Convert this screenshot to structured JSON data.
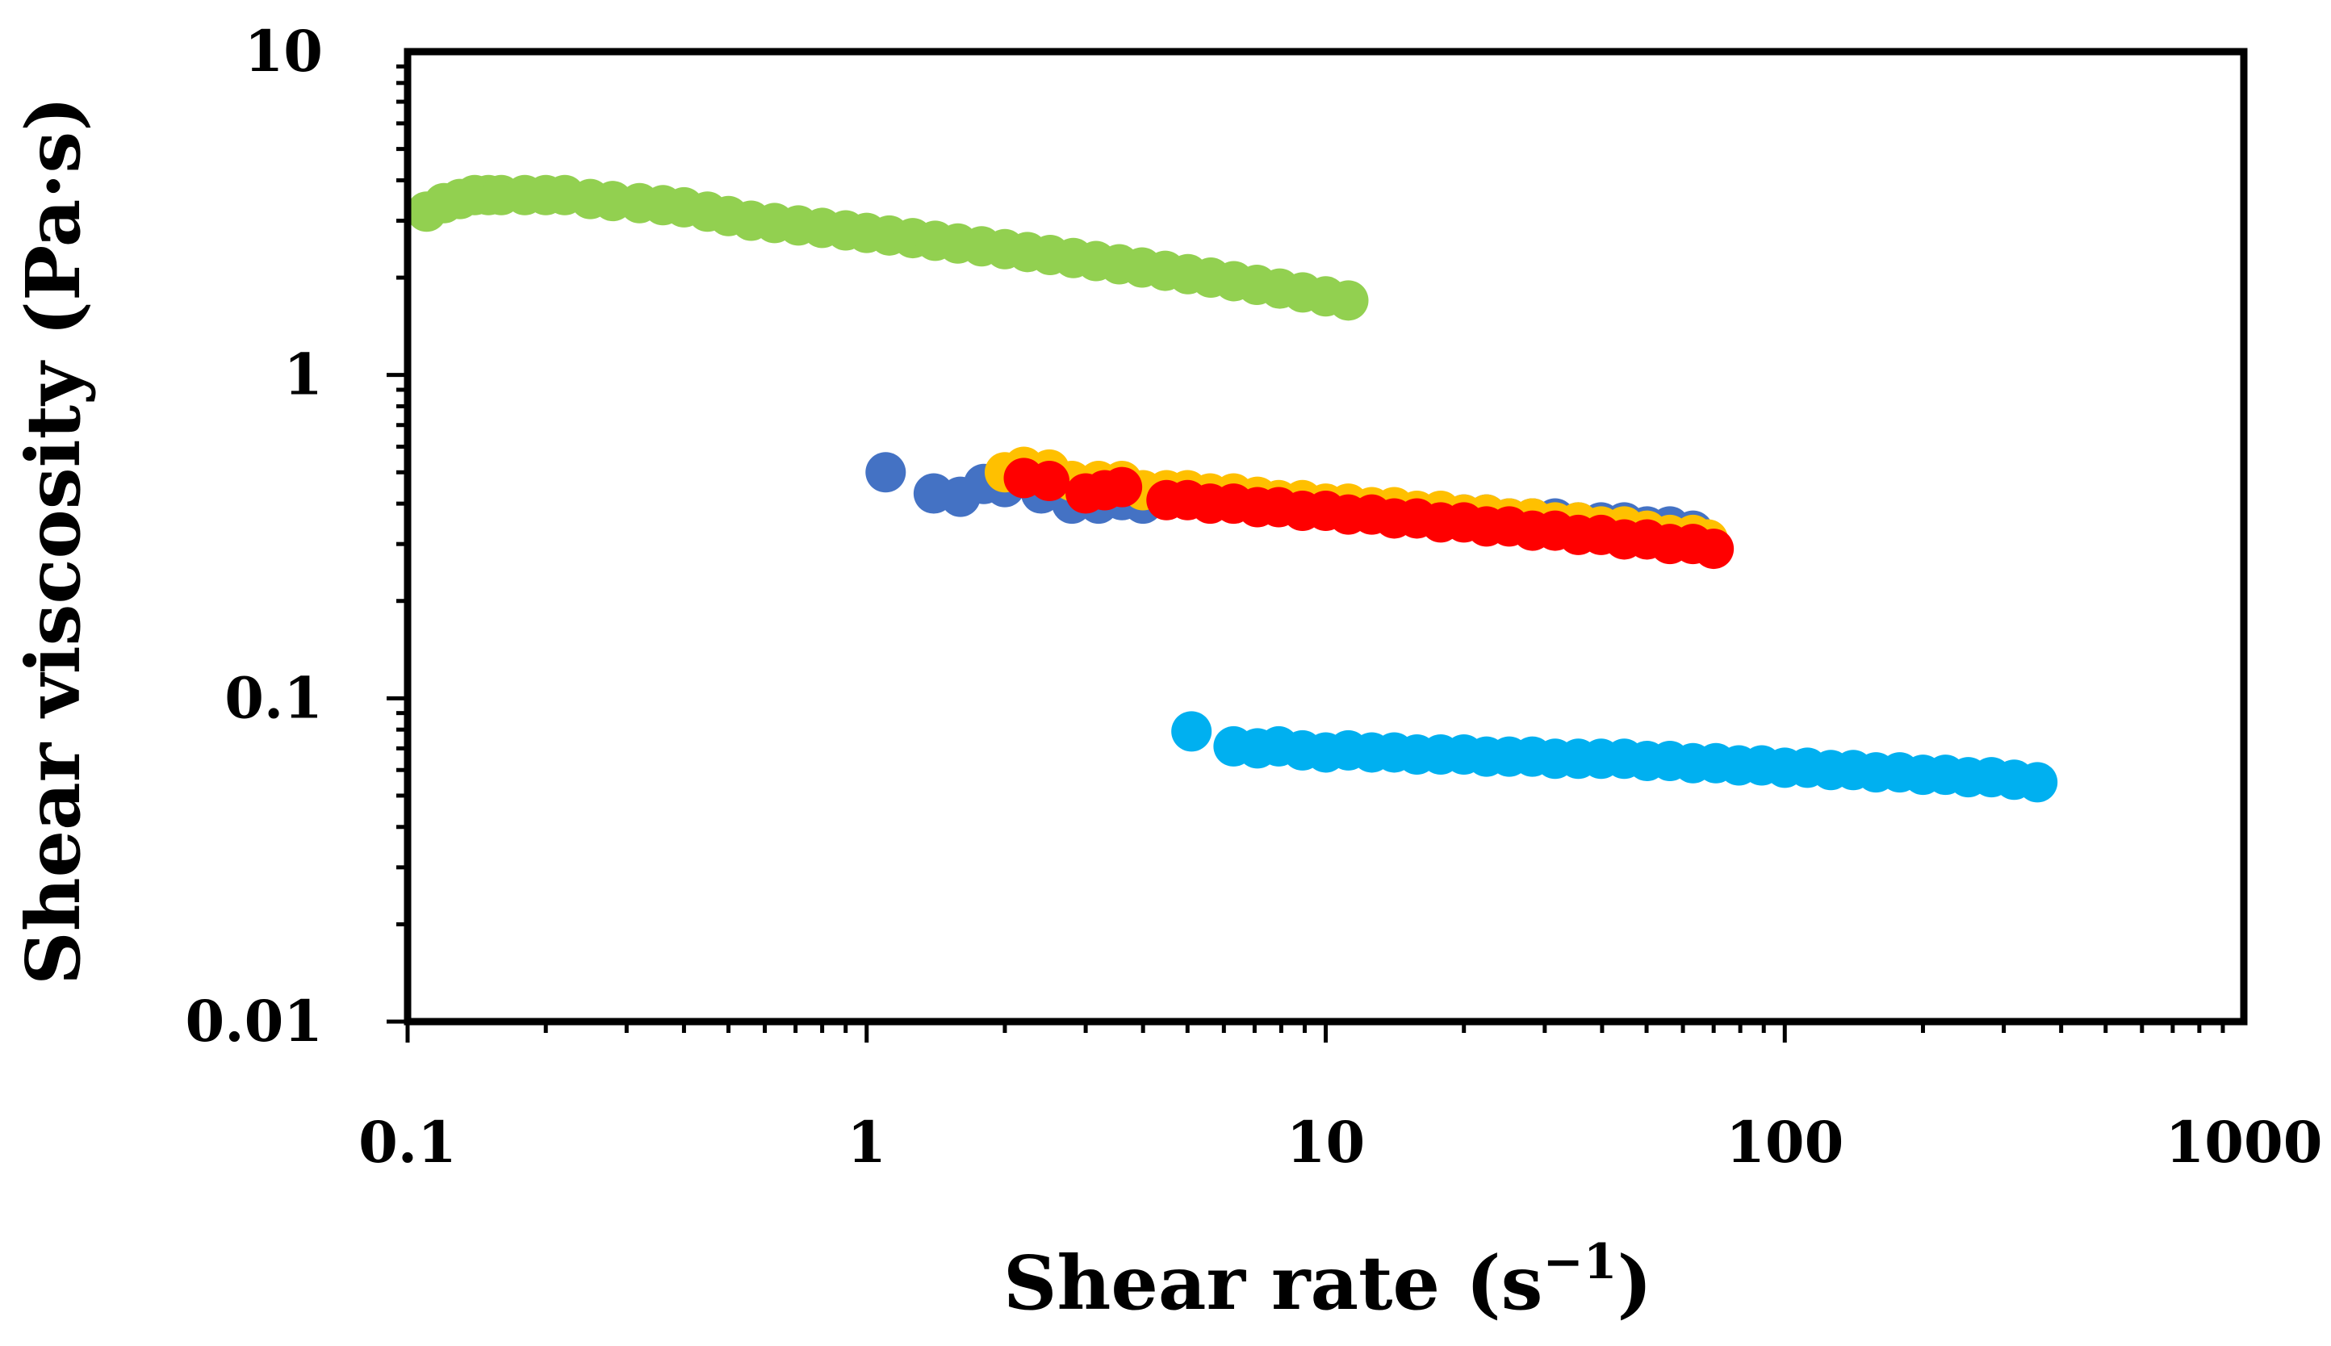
{
  "chart_data": {
    "type": "scatter",
    "title": "",
    "xlabel": "Shear rate (s",
    "xlabel_sup": "−1",
    "xlabel_close": ")",
    "ylabel": "Shear viscosity (Pa·s)",
    "xscale": "log",
    "yscale": "log",
    "xlim": [
      0.1,
      1000
    ],
    "ylim": [
      0.01,
      10
    ],
    "x_tick_values": [
      0.1,
      1,
      10,
      100,
      1000
    ],
    "x_tick_labels": [
      "0.1",
      "1",
      "10",
      "100",
      "1000"
    ],
    "y_tick_values": [
      0.01,
      0.1,
      1,
      10
    ],
    "y_tick_labels": [
      "0.01",
      "0.1",
      "1",
      "10"
    ],
    "grid": false,
    "legend": "none",
    "series": [
      {
        "name": "green",
        "color": "#92d050",
        "x": [
          0.11,
          0.12,
          0.13,
          0.14,
          0.15,
          0.16,
          0.18,
          0.2,
          0.22,
          0.25,
          0.28,
          0.32,
          0.36,
          0.4,
          0.45,
          0.5,
          0.56,
          0.63,
          0.71,
          0.8,
          0.9,
          1.0,
          1.12,
          1.26,
          1.41,
          1.58,
          1.78,
          2.0,
          2.24,
          2.51,
          2.82,
          3.16,
          3.55,
          3.98,
          4.47,
          5.01,
          5.62,
          6.31,
          7.08,
          7.94,
          8.91,
          10.0,
          11.2
        ],
        "y": [
          3.2,
          3.4,
          3.5,
          3.6,
          3.6,
          3.6,
          3.6,
          3.6,
          3.6,
          3.5,
          3.45,
          3.4,
          3.35,
          3.3,
          3.2,
          3.1,
          3.0,
          2.95,
          2.9,
          2.85,
          2.8,
          2.75,
          2.7,
          2.65,
          2.6,
          2.55,
          2.5,
          2.45,
          2.4,
          2.35,
          2.3,
          2.25,
          2.2,
          2.15,
          2.1,
          2.05,
          2.0,
          1.95,
          1.9,
          1.85,
          1.8,
          1.75,
          1.7
        ]
      },
      {
        "name": "dark blue",
        "color": "#4472c4",
        "x": [
          1.1,
          1.4,
          1.6,
          1.8,
          2.0,
          2.4,
          2.8,
          3.2,
          3.6,
          4.0,
          4.5,
          5.0,
          5.6,
          6.3,
          7.1,
          7.9,
          8.9,
          10,
          11.2,
          12.6,
          14.1,
          15.8,
          17.8,
          20,
          22.4,
          25.1,
          28.2,
          31.6,
          35.5,
          39.8,
          44.7,
          50.1,
          56.2,
          63.1
        ],
        "y": [
          0.5,
          0.43,
          0.42,
          0.46,
          0.45,
          0.43,
          0.4,
          0.4,
          0.41,
          0.4,
          0.42,
          0.42,
          0.41,
          0.41,
          0.4,
          0.4,
          0.39,
          0.39,
          0.38,
          0.38,
          0.38,
          0.37,
          0.37,
          0.37,
          0.37,
          0.36,
          0.36,
          0.36,
          0.35,
          0.35,
          0.35,
          0.34,
          0.34,
          0.33
        ]
      },
      {
        "name": "yellow",
        "color": "#ffc000",
        "x": [
          2.0,
          2.2,
          2.5,
          2.8,
          3.2,
          3.6,
          4.0,
          4.5,
          5.0,
          5.6,
          6.3,
          7.1,
          7.9,
          8.9,
          10,
          11.2,
          12.6,
          14.1,
          15.8,
          17.8,
          20,
          22.4,
          25.1,
          28.2,
          31.6,
          35.5,
          39.8,
          44.7,
          50.1,
          56.2,
          63.1,
          68
        ],
        "y": [
          0.5,
          0.52,
          0.51,
          0.47,
          0.47,
          0.47,
          0.44,
          0.44,
          0.44,
          0.43,
          0.43,
          0.42,
          0.41,
          0.41,
          0.4,
          0.4,
          0.39,
          0.39,
          0.38,
          0.38,
          0.37,
          0.37,
          0.36,
          0.36,
          0.35,
          0.35,
          0.34,
          0.34,
          0.33,
          0.32,
          0.32,
          0.31
        ]
      },
      {
        "name": "red",
        "color": "#ff0000",
        "x": [
          2.2,
          2.5,
          3.0,
          3.3,
          3.6,
          4.5,
          5.0,
          5.6,
          6.3,
          7.1,
          7.9,
          8.9,
          10,
          11.2,
          12.6,
          14.1,
          15.8,
          17.8,
          20,
          22.4,
          25.1,
          28.2,
          31.6,
          35.5,
          39.8,
          44.7,
          50.1,
          56.2,
          63.1,
          70
        ],
        "y": [
          0.48,
          0.47,
          0.43,
          0.44,
          0.45,
          0.41,
          0.41,
          0.4,
          0.4,
          0.39,
          0.39,
          0.38,
          0.38,
          0.37,
          0.37,
          0.36,
          0.36,
          0.35,
          0.35,
          0.34,
          0.34,
          0.33,
          0.33,
          0.32,
          0.32,
          0.31,
          0.31,
          0.3,
          0.3,
          0.29
        ]
      },
      {
        "name": "light blue",
        "color": "#00b0f0",
        "x": [
          5.1,
          6.3,
          7.1,
          7.9,
          8.9,
          10,
          11.2,
          12.6,
          14.1,
          15.8,
          17.8,
          20,
          22.4,
          25.1,
          28.2,
          31.6,
          35.5,
          39.8,
          44.7,
          50.1,
          56.2,
          63.1,
          70.8,
          79.4,
          89.1,
          100,
          112,
          126,
          141,
          158,
          178,
          200,
          224,
          251,
          282,
          316,
          355
        ],
        "y": [
          0.079,
          0.071,
          0.07,
          0.071,
          0.069,
          0.068,
          0.069,
          0.068,
          0.068,
          0.067,
          0.067,
          0.067,
          0.066,
          0.066,
          0.066,
          0.065,
          0.065,
          0.065,
          0.065,
          0.064,
          0.064,
          0.063,
          0.063,
          0.062,
          0.062,
          0.061,
          0.061,
          0.06,
          0.06,
          0.059,
          0.059,
          0.058,
          0.058,
          0.057,
          0.057,
          0.056,
          0.055
        ]
      }
    ]
  }
}
